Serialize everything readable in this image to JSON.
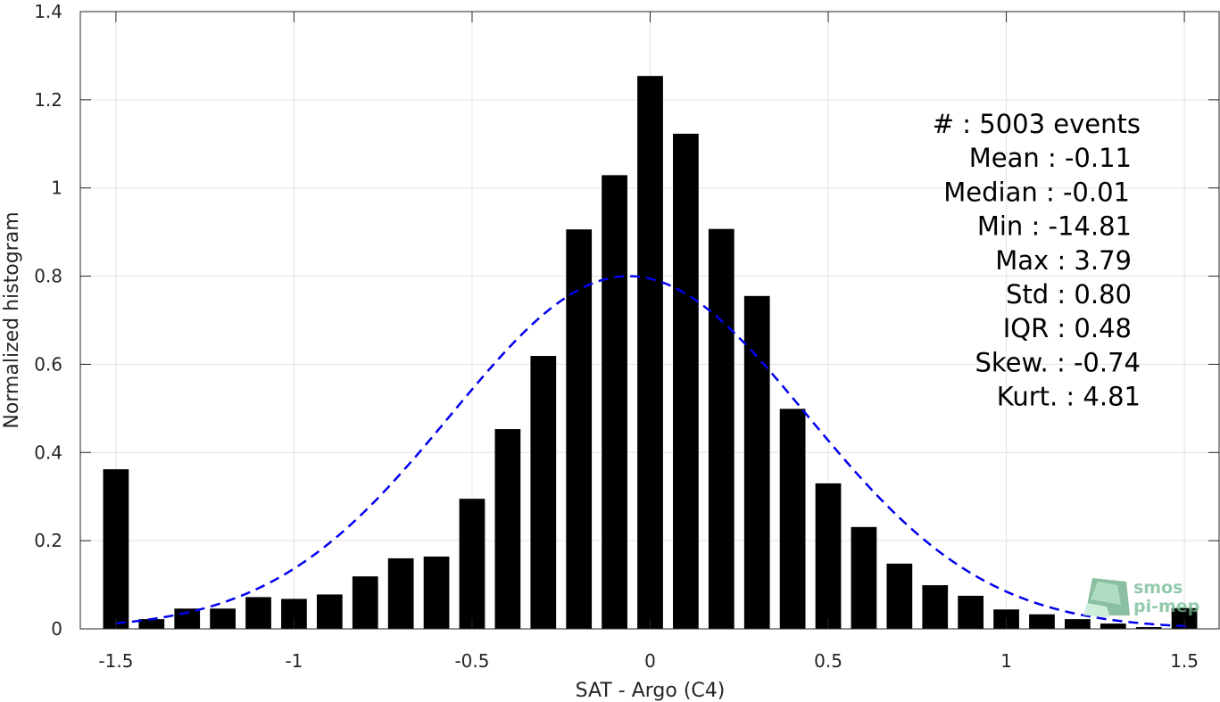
{
  "chart_data": {
    "type": "bar",
    "xlabel": "SAT - Argo (C4)",
    "ylabel": "Normalized histogram",
    "xlim": [
      -1.6,
      1.6
    ],
    "ylim": [
      0,
      1.4
    ],
    "xticks": [
      -1.5,
      -1,
      -0.5,
      0,
      0.5,
      1,
      1.5
    ],
    "xtick_labels": [
      "-1.5",
      "-1",
      "-0.5",
      "0",
      "0.5",
      "1",
      "1.5"
    ],
    "yticks": [
      0,
      0.2,
      0.4,
      0.6,
      0.8,
      1,
      1.2,
      1.4
    ],
    "ytick_labels": [
      "0",
      "0.2",
      "0.4",
      "0.6",
      "0.8",
      "1",
      "1.2",
      "1.4"
    ],
    "grid": true,
    "bar_color": "#000000",
    "bins": [
      -1.5,
      -1.4,
      -1.3,
      -1.2,
      -1.1,
      -1.0,
      -0.9,
      -0.8,
      -0.7,
      -0.6,
      -0.5,
      -0.4,
      -0.3,
      -0.2,
      -0.1,
      0.0,
      0.1,
      0.2,
      0.3,
      0.4,
      0.5,
      0.6,
      0.7,
      0.8,
      0.9,
      1.0,
      1.1,
      1.2,
      1.3,
      1.4,
      1.5
    ],
    "values": [
      0.362,
      0.022,
      0.046,
      0.046,
      0.072,
      0.068,
      0.078,
      0.119,
      0.16,
      0.164,
      0.295,
      0.453,
      0.619,
      0.906,
      1.029,
      1.254,
      1.123,
      0.907,
      0.755,
      0.499,
      0.33,
      0.231,
      0.148,
      0.099,
      0.075,
      0.044,
      0.033,
      0.022,
      0.012,
      0.004,
      0.047
    ],
    "fit": {
      "type": "normal",
      "mean": -0.06,
      "std": 0.5,
      "style": "dashed",
      "color": "#0000ee"
    },
    "stats": [
      "#  : 5003 events",
      "Mean : -0.11",
      "Median : -0.01",
      "Min : -14.81",
      "Max : 3.79",
      "Std : 0.80",
      "IQR : 0.48",
      "Skew. : -0.74",
      "Kurt. : 4.81"
    ]
  },
  "watermark": {
    "line1": "smos",
    "line2": "pi-mep",
    "color": "#6fb98f"
  }
}
